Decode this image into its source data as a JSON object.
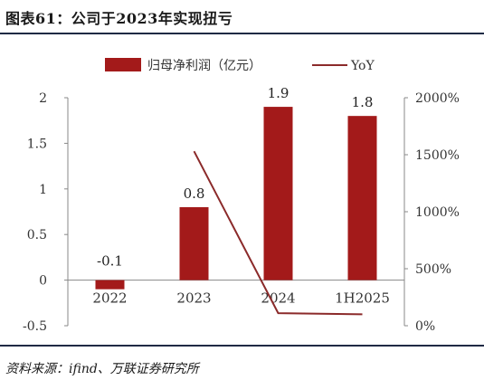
{
  "title": "图表61：公司于2023年实现扭亏",
  "source": "资料来源：ifind、万联证券研究所",
  "chart_data": {
    "type": "bar",
    "categories": [
      "2022",
      "2023",
      "2024",
      "1H2025"
    ],
    "series": [
      {
        "name": "归母净利润（亿元）",
        "type": "bar",
        "axis": "left",
        "values": [
          -0.1,
          0.8,
          1.9,
          1.8
        ],
        "labels": [
          "-0.1",
          "0.8",
          "1.9",
          "1.8"
        ],
        "color": "#a31a1a"
      },
      {
        "name": "YoY",
        "type": "line",
        "axis": "right",
        "values": [
          null,
          1530,
          110,
          100
        ],
        "color": "#8b2a2a"
      }
    ],
    "y_left": {
      "ticks": [
        "-0.5",
        "0",
        "0.5",
        "1",
        "1.5",
        "2"
      ],
      "ylim": [
        -0.5,
        2
      ]
    },
    "y_right": {
      "ticks": [
        "0%",
        "500%",
        "1000%",
        "1500%",
        "2000%"
      ],
      "ylim": [
        0,
        2000
      ]
    },
    "legend_position": "top",
    "grid": false
  }
}
